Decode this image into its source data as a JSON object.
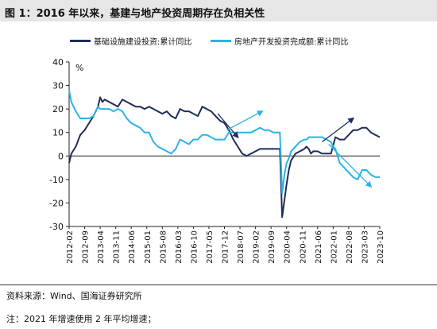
{
  "figure": {
    "title": "图 1：2016 年以来，基建与地产投资周期存在负相关性",
    "source": "资料来源：Wind、国海证券研究所",
    "note": "注：2021 年增速使用 2 年平均增速；"
  },
  "chart_data": {
    "type": "line",
    "title": "",
    "xlabel": "",
    "ylabel": "%",
    "ylim": [
      -30,
      40
    ],
    "yticks": [
      -30,
      -20,
      -10,
      0,
      10,
      20,
      30,
      40
    ],
    "x_tick_labels": [
      "2012-02",
      "2012-09",
      "2013-04",
      "2013-11",
      "2014-06",
      "2015-01",
      "2015-08",
      "2016-03",
      "2016-10",
      "2017-05",
      "2017-12",
      "2018-07",
      "2019-02",
      "2019-09",
      "2020-04",
      "2020-11",
      "2021-06",
      "2022-01",
      "2022-08",
      "2023-03",
      "2023-10"
    ],
    "legend_position": "top",
    "grid": false,
    "series": [
      {
        "name": "基础设施建设投资:累计同比",
        "color": "#1f2d5c",
        "points": [
          [
            "2012-02",
            -3
          ],
          [
            "2012-03",
            1
          ],
          [
            "2012-05",
            4
          ],
          [
            "2012-07",
            9
          ],
          [
            "2012-09",
            11
          ],
          [
            "2012-11",
            14
          ],
          [
            "2013-01",
            17
          ],
          [
            "2013-03",
            21
          ],
          [
            "2013-04",
            25
          ],
          [
            "2013-05",
            23
          ],
          [
            "2013-06",
            24
          ],
          [
            "2013-08",
            23
          ],
          [
            "2013-10",
            22
          ],
          [
            "2013-12",
            21
          ],
          [
            "2014-02",
            24
          ],
          [
            "2014-04",
            23
          ],
          [
            "2014-06",
            22
          ],
          [
            "2014-08",
            21
          ],
          [
            "2014-10",
            21
          ],
          [
            "2014-12",
            20
          ],
          [
            "2015-02",
            21
          ],
          [
            "2015-04",
            20
          ],
          [
            "2015-06",
            19
          ],
          [
            "2015-08",
            18
          ],
          [
            "2015-10",
            19
          ],
          [
            "2015-12",
            17
          ],
          [
            "2016-02",
            16
          ],
          [
            "2016-04",
            20
          ],
          [
            "2016-06",
            19
          ],
          [
            "2016-08",
            19
          ],
          [
            "2016-10",
            18
          ],
          [
            "2016-12",
            17
          ],
          [
            "2017-02",
            21
          ],
          [
            "2017-04",
            20
          ],
          [
            "2017-06",
            19
          ],
          [
            "2017-08",
            17
          ],
          [
            "2017-10",
            15
          ],
          [
            "2017-12",
            14
          ],
          [
            "2018-02",
            11
          ],
          [
            "2018-03",
            9
          ],
          [
            "2018-04",
            7
          ],
          [
            "2018-06",
            4
          ],
          [
            "2018-08",
            1
          ],
          [
            "2018-10",
            0
          ],
          [
            "2018-12",
            1
          ],
          [
            "2019-02",
            2
          ],
          [
            "2019-04",
            3
          ],
          [
            "2019-06",
            3
          ],
          [
            "2019-08",
            3
          ],
          [
            "2019-10",
            3
          ],
          [
            "2019-12",
            3
          ],
          [
            "2020-01",
            3
          ],
          [
            "2020-02",
            -26
          ],
          [
            "2020-03",
            -19
          ],
          [
            "2020-04",
            -12
          ],
          [
            "2020-05",
            -6
          ],
          [
            "2020-06",
            -2
          ],
          [
            "2020-08",
            1
          ],
          [
            "2020-10",
            2
          ],
          [
            "2020-12",
            3
          ],
          [
            "2021-01",
            4
          ],
          [
            "2021-02",
            3
          ],
          [
            "2021-03",
            1
          ],
          [
            "2021-04",
            2
          ],
          [
            "2021-06",
            2
          ],
          [
            "2021-08",
            1
          ],
          [
            "2021-10",
            1
          ],
          [
            "2021-12",
            1
          ],
          [
            "2022-02",
            8
          ],
          [
            "2022-04",
            7
          ],
          [
            "2022-06",
            7
          ],
          [
            "2022-08",
            9
          ],
          [
            "2022-10",
            11
          ],
          [
            "2022-12",
            11
          ],
          [
            "2023-02",
            12
          ],
          [
            "2023-04",
            12
          ],
          [
            "2023-06",
            10
          ],
          [
            "2023-08",
            9
          ],
          [
            "2023-10",
            8
          ]
        ]
      },
      {
        "name": "房地产开发投资完成额:累计同比",
        "color": "#2bb3e6",
        "points": [
          [
            "2012-02",
            28
          ],
          [
            "2012-03",
            23
          ],
          [
            "2012-05",
            19
          ],
          [
            "2012-07",
            16
          ],
          [
            "2012-09",
            16
          ],
          [
            "2012-11",
            16
          ],
          [
            "2013-01",
            17
          ],
          [
            "2013-03",
            21
          ],
          [
            "2013-04",
            20
          ],
          [
            "2013-06",
            20
          ],
          [
            "2013-08",
            20
          ],
          [
            "2013-10",
            19
          ],
          [
            "2013-12",
            20
          ],
          [
            "2014-02",
            19
          ],
          [
            "2014-04",
            16
          ],
          [
            "2014-06",
            14
          ],
          [
            "2014-08",
            13
          ],
          [
            "2014-10",
            12
          ],
          [
            "2014-12",
            10
          ],
          [
            "2015-02",
            10
          ],
          [
            "2015-04",
            6
          ],
          [
            "2015-06",
            4
          ],
          [
            "2015-08",
            3
          ],
          [
            "2015-10",
            2
          ],
          [
            "2015-12",
            1
          ],
          [
            "2016-02",
            3
          ],
          [
            "2016-04",
            7
          ],
          [
            "2016-06",
            6
          ],
          [
            "2016-08",
            5
          ],
          [
            "2016-10",
            7
          ],
          [
            "2016-12",
            7
          ],
          [
            "2017-02",
            9
          ],
          [
            "2017-04",
            9
          ],
          [
            "2017-06",
            8
          ],
          [
            "2017-08",
            7
          ],
          [
            "2017-10",
            7
          ],
          [
            "2017-12",
            7
          ],
          [
            "2018-02",
            10
          ],
          [
            "2018-04",
            10
          ],
          [
            "2018-06",
            10
          ],
          [
            "2018-08",
            10
          ],
          [
            "2018-10",
            10
          ],
          [
            "2018-12",
            10
          ],
          [
            "2019-02",
            11
          ],
          [
            "2019-04",
            12
          ],
          [
            "2019-06",
            11
          ],
          [
            "2019-08",
            11
          ],
          [
            "2019-10",
            10
          ],
          [
            "2019-12",
            10
          ],
          [
            "2020-01",
            10
          ],
          [
            "2020-02",
            -16
          ],
          [
            "2020-03",
            -8
          ],
          [
            "2020-04",
            -3
          ],
          [
            "2020-05",
            -1
          ],
          [
            "2020-06",
            2
          ],
          [
            "2020-08",
            4
          ],
          [
            "2020-10",
            6
          ],
          [
            "2020-12",
            7
          ],
          [
            "2021-01",
            7
          ],
          [
            "2021-02",
            8
          ],
          [
            "2021-04",
            8
          ],
          [
            "2021-06",
            8
          ],
          [
            "2021-08",
            8
          ],
          [
            "2021-10",
            7
          ],
          [
            "2021-12",
            6
          ],
          [
            "2022-01",
            4
          ],
          [
            "2022-02",
            3
          ],
          [
            "2022-03",
            0
          ],
          [
            "2022-04",
            -3
          ],
          [
            "2022-05",
            -4
          ],
          [
            "2022-06",
            -5
          ],
          [
            "2022-08",
            -7
          ],
          [
            "2022-10",
            -9
          ],
          [
            "2022-12",
            -10
          ],
          [
            "2023-02",
            -6
          ],
          [
            "2023-04",
            -6
          ],
          [
            "2023-06",
            -8
          ],
          [
            "2023-08",
            -9
          ],
          [
            "2023-10",
            -9
          ]
        ]
      }
    ],
    "annotations": [
      {
        "type": "arrow",
        "color": "#1f2d5c",
        "from": [
          "2017-09",
          18
        ],
        "to": [
          "2018-06",
          8
        ]
      },
      {
        "type": "arrow",
        "color": "#2bb3e6",
        "from": [
          "2018-01",
          11
        ],
        "to": [
          "2019-05",
          19
        ]
      },
      {
        "type": "arrow",
        "color": "#1f2d5c",
        "from": [
          "2021-08",
          6
        ],
        "to": [
          "2022-10",
          16
        ]
      },
      {
        "type": "arrow",
        "color": "#2bb3e6",
        "from": [
          "2021-11",
          5
        ],
        "to": [
          "2023-06",
          -13
        ]
      }
    ]
  }
}
